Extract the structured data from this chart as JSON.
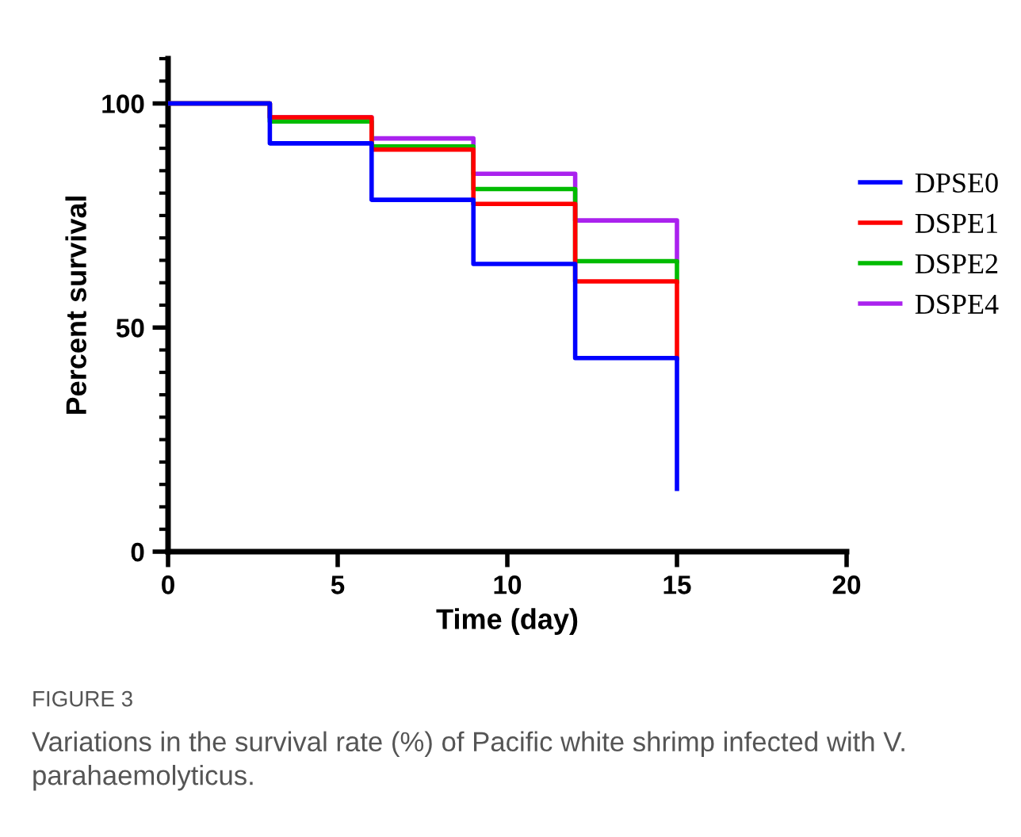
{
  "chart_data": {
    "type": "step",
    "xlabel": "Time (day)",
    "ylabel": "Percent survival",
    "x": [
      0,
      3,
      6,
      9,
      12,
      15
    ],
    "series": [
      {
        "name": "DPSE0",
        "color": "#0000ff",
        "values": [
          100,
          91.1,
          78.5,
          64.2,
          43.2,
          14.0
        ]
      },
      {
        "name": "DSPE1",
        "color": "#ff0000",
        "values": [
          100,
          96.9,
          89.7,
          77.6,
          60.3,
          43.2
        ]
      },
      {
        "name": "DSPE2",
        "color": "#00bb00",
        "values": [
          100,
          96.0,
          90.4,
          80.9,
          64.8,
          60.3
        ]
      },
      {
        "name": "DSPE4",
        "color": "#aa22ee",
        "values": [
          100,
          96.9,
          92.2,
          84.3,
          73.9,
          64.8
        ]
      }
    ],
    "xlim": [
      0,
      20
    ],
    "xticks": [
      0,
      5,
      10,
      15,
      20
    ],
    "ylim": [
      0,
      110
    ],
    "yticks": [
      0,
      50,
      100
    ],
    "grid": false,
    "legend": "right",
    "annotations": [
      "FIGURE 3",
      "Variations in the survival rate (%) of Pacific white shrimp infected with V. parahaemolyticus."
    ]
  }
}
